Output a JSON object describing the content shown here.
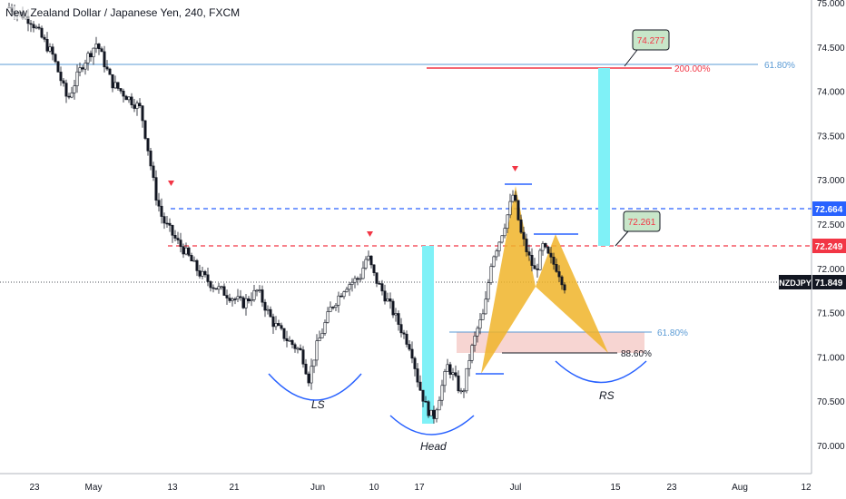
{
  "header": {
    "title": "New Zealand Dollar / Japanese Yen, 240, FXCM"
  },
  "colors": {
    "candle": "#131722",
    "fib_line": "#5b9bd5",
    "red_level": "#f23645",
    "blue_level": "#2962ff",
    "pattern_fill": "#f0b429",
    "target_bar": "#7ff1f7",
    "zone": "#f4c7c3",
    "current_price": "#131722",
    "label_green": "#c8e6c9"
  },
  "chart_data": {
    "type": "candlestick",
    "symbol": "NZDJPY",
    "timeframe": "240",
    "y_ticks": [
      "70.000",
      "70.500",
      "71.000",
      "71.500",
      "72.000",
      "72.500",
      "73.000",
      "73.500",
      "74.000",
      "74.500",
      "75.000"
    ],
    "ylim": [
      69.75,
      75.05
    ],
    "x_ticks": [
      "23",
      "May",
      "13",
      "21",
      "Jun",
      "10",
      "17",
      "Jul",
      "15",
      "23",
      "Aug",
      "12"
    ],
    "price_path": [
      {
        "t": 0,
        "p": 74.95
      },
      {
        "t": 3,
        "p": 74.8
      },
      {
        "t": 6,
        "p": 74.4
      },
      {
        "t": 8,
        "p": 73.9
      },
      {
        "t": 10,
        "p": 74.3
      },
      {
        "t": 12,
        "p": 74.55
      },
      {
        "t": 14,
        "p": 74.1
      },
      {
        "t": 16,
        "p": 73.95
      },
      {
        "t": 18,
        "p": 73.8
      },
      {
        "t": 19,
        "p": 73.35
      },
      {
        "t": 20,
        "p": 72.85
      },
      {
        "t": 21,
        "p": 72.55
      },
      {
        "t": 23,
        "p": 72.3
      },
      {
        "t": 24,
        "p": 72.2
      },
      {
        "t": 26,
        "p": 71.95
      },
      {
        "t": 28,
        "p": 71.8
      },
      {
        "t": 30,
        "p": 71.7
      },
      {
        "t": 32,
        "p": 71.6
      },
      {
        "t": 34,
        "p": 71.75
      },
      {
        "t": 36,
        "p": 71.4
      },
      {
        "t": 38,
        "p": 71.2
      },
      {
        "t": 40,
        "p": 71.05
      },
      {
        "t": 41,
        "p": 70.75
      },
      {
        "t": 42,
        "p": 71.1
      },
      {
        "t": 44,
        "p": 71.55
      },
      {
        "t": 46,
        "p": 71.8
      },
      {
        "t": 48,
        "p": 71.9
      },
      {
        "t": 49,
        "p": 72.15
      },
      {
        "t": 50,
        "p": 71.9
      },
      {
        "t": 52,
        "p": 71.6
      },
      {
        "t": 54,
        "p": 71.25
      },
      {
        "t": 55,
        "p": 71.1
      },
      {
        "t": 56,
        "p": 70.7
      },
      {
        "t": 57,
        "p": 70.45
      },
      {
        "t": 58,
        "p": 70.3
      },
      {
        "t": 59,
        "p": 70.6
      },
      {
        "t": 60,
        "p": 70.9
      },
      {
        "t": 61,
        "p": 70.75
      },
      {
        "t": 62,
        "p": 70.55
      },
      {
        "t": 63,
        "p": 71.0
      },
      {
        "t": 64,
        "p": 71.3
      },
      {
        "t": 65,
        "p": 71.5
      },
      {
        "t": 66,
        "p": 72.1
      },
      {
        "t": 67,
        "p": 72.3
      },
      {
        "t": 68,
        "p": 72.55
      },
      {
        "t": 69,
        "p": 72.85
      },
      {
        "t": 70,
        "p": 72.4
      },
      {
        "t": 71,
        "p": 72.15
      },
      {
        "t": 72,
        "p": 71.95
      },
      {
        "t": 73,
        "p": 72.25
      },
      {
        "t": 74,
        "p": 72.1
      },
      {
        "t": 75,
        "p": 72.0
      },
      {
        "t": 76,
        "p": 71.8
      }
    ],
    "levels": [
      {
        "price": 74.277,
        "label": "200.00%",
        "color": "red"
      },
      {
        "price": 72.664,
        "label": "72.664",
        "color": "blue",
        "style": "dashed"
      },
      {
        "price": 72.249,
        "label": "72.249",
        "color": "red",
        "style": "dashed"
      },
      {
        "price": 71.849,
        "label": "71.849",
        "color": "current",
        "style": "dotted"
      }
    ],
    "fib_labels": [
      "61.80%",
      "61.80%",
      "88.60%",
      "200.00%"
    ],
    "callouts": [
      "74.277",
      "72.261"
    ],
    "pattern_labels": [
      "LS",
      "Head",
      "RS"
    ],
    "price_axis_symbol": "NZDJPY",
    "price_axis_tags": [
      "72.664",
      "72.249",
      "71.849"
    ]
  }
}
